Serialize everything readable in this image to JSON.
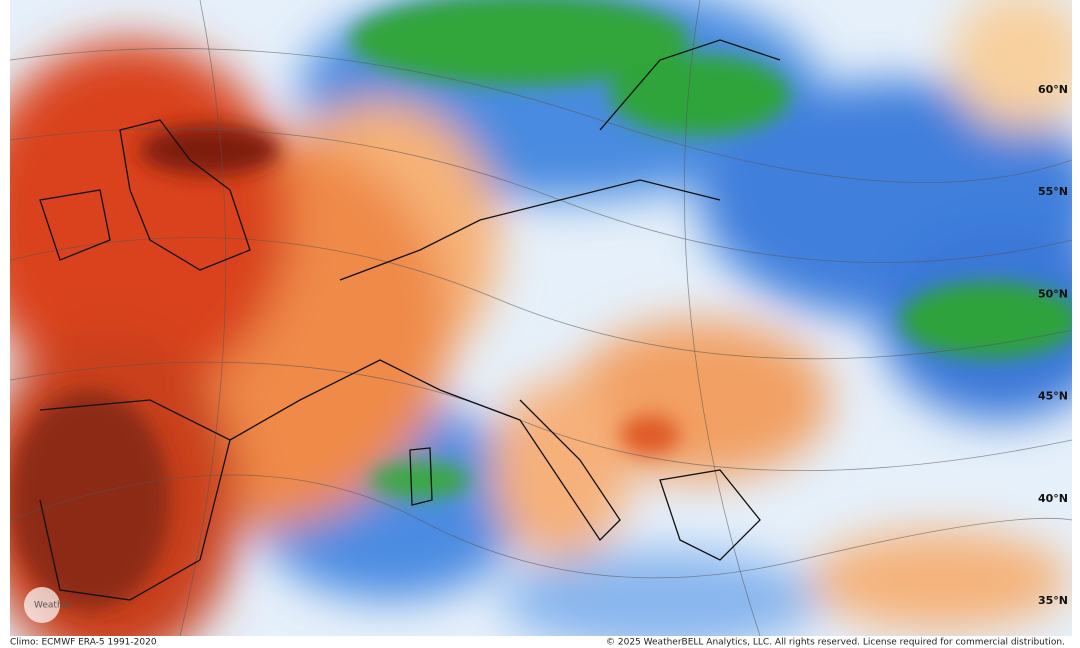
{
  "map": {
    "lat_labels": [
      "60°N",
      "55°N",
      "50°N",
      "45°N",
      "40°N",
      "35°N"
    ],
    "logo": "Weather"
  },
  "footer": {
    "left": "Climo: ECMWF ERA-5 1991-2020",
    "right": "© 2025 WeatherBELL Analytics, LLC. All rights reserved. License required for commercial distribution."
  }
}
